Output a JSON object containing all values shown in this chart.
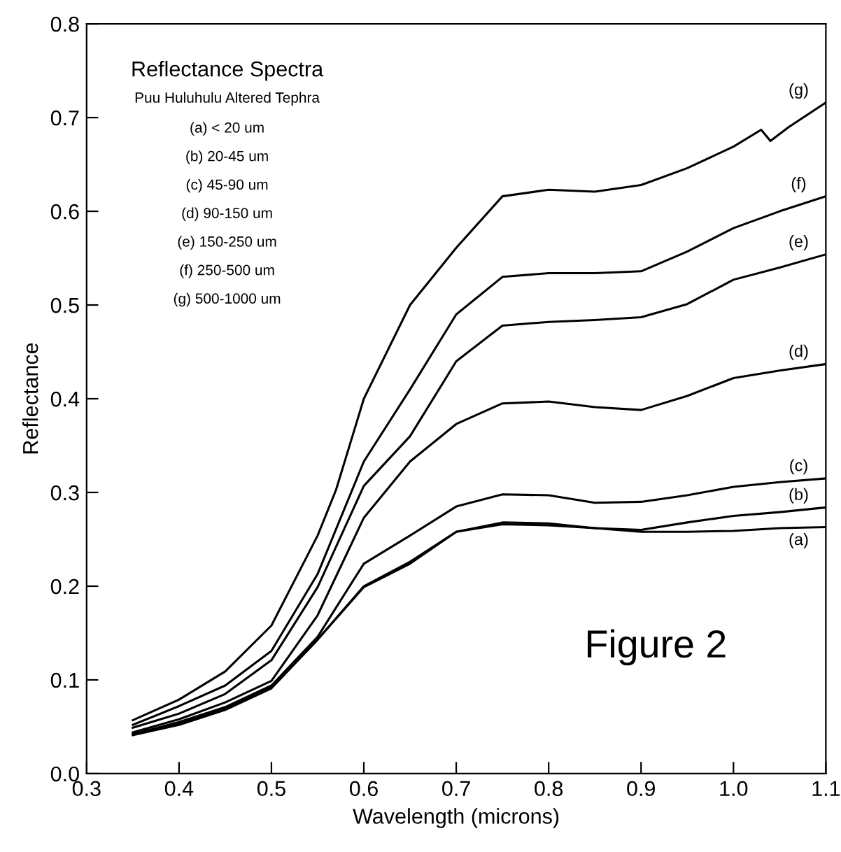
{
  "chart_data": {
    "type": "line",
    "title": "Reflectance Spectra",
    "subtitle": "Puu Huluhulu Altered Tephra",
    "xlabel": "Wavelength (microns)",
    "ylabel": "Reflectance",
    "x": [
      0.35,
      0.4,
      0.45,
      0.5,
      0.55,
      0.6,
      0.65,
      0.7,
      0.75,
      0.8,
      0.85,
      0.9,
      0.95,
      1.0,
      1.05,
      1.1
    ],
    "series": [
      {
        "name": "(a)",
        "color": "#000000",
        "values": [
          0.041,
          0.052,
          0.068,
          0.091,
          0.143,
          0.199,
          0.224,
          0.258,
          0.268,
          0.267,
          0.262,
          0.258,
          0.258,
          0.259,
          0.262,
          0.263
        ]
      },
      {
        "name": "(b)",
        "color": "#000000",
        "values": [
          0.042,
          0.053,
          0.069,
          0.092,
          0.143,
          0.2,
          0.226,
          0.258,
          0.266,
          0.265,
          0.262,
          0.26,
          0.268,
          0.275,
          0.279,
          0.284
        ]
      },
      {
        "name": "(c)",
        "color": "#000000",
        "values": [
          0.042,
          0.055,
          0.071,
          0.094,
          0.146,
          0.224,
          0.254,
          0.285,
          0.298,
          0.297,
          0.289,
          0.29,
          0.297,
          0.306,
          0.311,
          0.315
        ]
      },
      {
        "name": "(d)",
        "color": "#000000",
        "values": [
          0.044,
          0.058,
          0.076,
          0.099,
          0.169,
          0.273,
          0.333,
          0.373,
          0.395,
          0.397,
          0.391,
          0.388,
          0.403,
          0.422,
          0.43,
          0.437
        ]
      },
      {
        "name": "(e)",
        "color": "#000000",
        "values": [
          0.049,
          0.064,
          0.085,
          0.121,
          0.199,
          0.307,
          0.36,
          0.44,
          0.478,
          0.482,
          0.484,
          0.487,
          0.501,
          0.527,
          0.54,
          0.554
        ]
      },
      {
        "name": "(f)",
        "color": "#000000",
        "values": [
          0.052,
          0.072,
          0.094,
          0.131,
          0.213,
          0.333,
          0.41,
          0.49,
          0.53,
          0.534,
          0.534,
          0.536,
          0.557,
          0.582,
          0.6,
          0.616
        ]
      },
      {
        "name": "(g)",
        "color": "#000000",
        "x": [
          0.35,
          0.4,
          0.45,
          0.5,
          0.55,
          0.57,
          0.6,
          0.65,
          0.7,
          0.75,
          0.8,
          0.85,
          0.9,
          0.95,
          1.0,
          1.03,
          1.04,
          1.06,
          1.1
        ],
        "values": [
          0.057,
          0.079,
          0.109,
          0.158,
          0.254,
          0.303,
          0.4,
          0.5,
          0.561,
          0.616,
          0.623,
          0.621,
          0.628,
          0.646,
          0.669,
          0.687,
          0.675,
          0.69,
          0.716
        ]
      }
    ],
    "annotations": [
      "(a) < 20 um",
      "(b) 20-45 um",
      "(c) 45-90 um",
      "(d) 90-150 um",
      "(e) 150-250 um",
      "(f) 250-500 um",
      "(g) 500-1000 um",
      "Figure 2"
    ],
    "xlim": [
      0.3,
      1.1
    ],
    "ylim": [
      0.0,
      0.8
    ],
    "xticks": [
      0.3,
      0.4,
      0.5,
      0.6,
      0.7,
      0.8,
      0.9,
      {
        "value": 1,
        "label": "1.0"
      },
      1.1
    ],
    "yticks": [
      {
        "value": 0,
        "label": "0.0"
      },
      0.1,
      0.2,
      0.3,
      0.4,
      0.5,
      0.6,
      0.7,
      0.8
    ],
    "grid": false,
    "legend": false,
    "marker": "none",
    "line_style": "solid"
  }
}
